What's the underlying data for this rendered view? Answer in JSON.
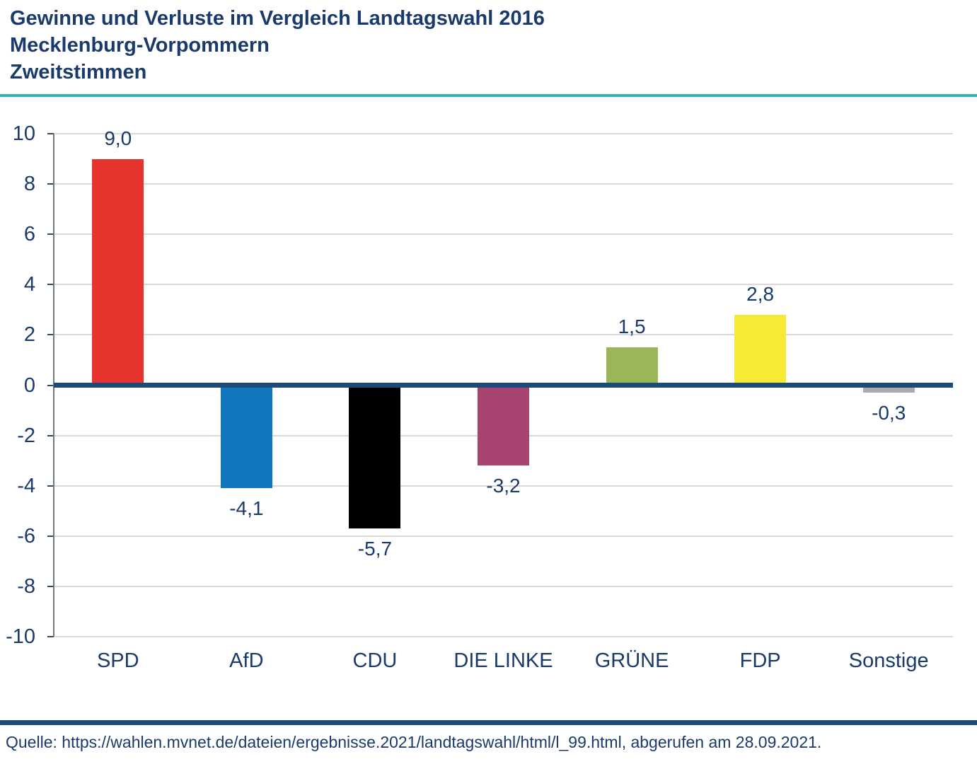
{
  "header": {
    "title_line1": "Gewinne und Verluste im Vergleich Landtagswahl 2016",
    "title_line2": "Mecklenburg-Vorpommern",
    "title_line3": "Zweitstimmen"
  },
  "source": {
    "text": "Quelle: https://wahlen.mvnet.de/dateien/ergebnisse.2021/landtagswahl/html/l_99.html, abgerufen am 28.09.2021."
  },
  "colors": {
    "navy_text": "#1a3a6b",
    "teal_divider": "#2fb5b5",
    "zero_line": "#1c4b7a",
    "bottom_divider": "#1c4b7a",
    "gridline": "#d9d9d9",
    "axis_line": "#6c7a86",
    "tick_mark": "#3c464e"
  },
  "chart_data": {
    "type": "bar",
    "title": "Gewinne und Verluste im Vergleich Landtagswahl 2016 Mecklenburg-Vorpommern Zweitstimmen",
    "categories": [
      "SPD",
      "AfD",
      "CDU",
      "DIE LINKE",
      "GRÜNE",
      "FDP",
      "Sonstige"
    ],
    "values": [
      9.0,
      -4.1,
      -5.7,
      -3.2,
      1.5,
      2.8,
      -0.3
    ],
    "value_labels": [
      "9,0",
      "-4,1",
      "-5,7",
      "-3,2",
      "1,5",
      "2,8",
      "-0,3"
    ],
    "bar_colors": [
      "#e6332d",
      "#1178c0",
      "#000000",
      "#a84472",
      "#9ab757",
      "#f8e935",
      "#ababab"
    ],
    "xlabel": "",
    "ylabel": "",
    "ylim": [
      -10,
      10
    ],
    "ytick_step": 2,
    "ytick_labels": [
      "10",
      "8",
      "6",
      "4",
      "2",
      "0",
      "-2",
      "-4",
      "-6",
      "-8",
      "-10"
    ],
    "grid": true,
    "legend": "none"
  }
}
